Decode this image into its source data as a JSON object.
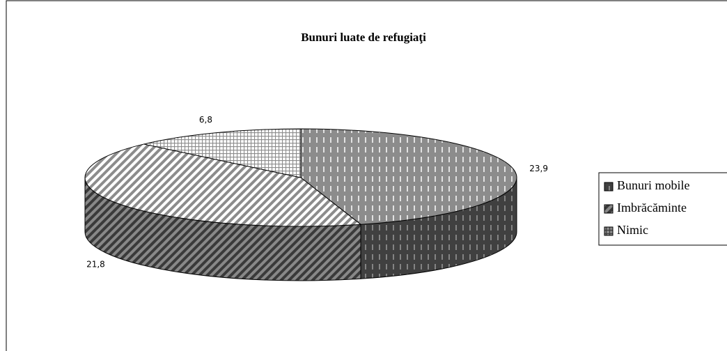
{
  "chart_data": {
    "type": "pie",
    "title": "Bunuri luate de refugiaţi",
    "categories": [
      "Bunuri mobile",
      "Imbrăcăminte",
      "Nimic"
    ],
    "values": [
      23.9,
      21.8,
      6.8
    ],
    "value_labels": [
      "23,9",
      "21,8",
      "6,8"
    ],
    "legend": "right"
  }
}
